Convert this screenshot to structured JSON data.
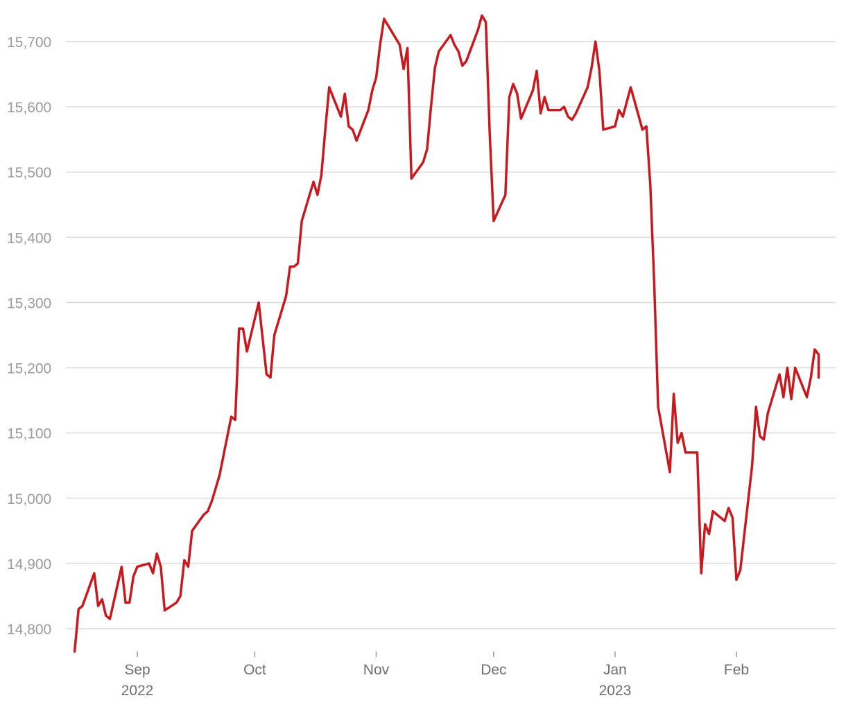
{
  "chart_data": {
    "type": "line",
    "title": "",
    "xlabel": "",
    "ylabel": "",
    "ylim": [
      14765,
      15740
    ],
    "grid": "horizontal",
    "legend": "none",
    "yticks": [
      {
        "value": 15700,
        "label": "15,700"
      },
      {
        "value": 15600,
        "label": "15,600"
      },
      {
        "value": 15500,
        "label": "15,500"
      },
      {
        "value": 15400,
        "label": "15,400"
      },
      {
        "value": 15300,
        "label": "15,300"
      },
      {
        "value": 15200,
        "label": "15,200"
      },
      {
        "value": 15100,
        "label": "15,100"
      },
      {
        "value": 15000,
        "label": "15,000"
      },
      {
        "value": 14900,
        "label": "14,900"
      },
      {
        "value": 14800,
        "label": "14,800"
      }
    ],
    "xticks": [
      {
        "date": "2022-09-01",
        "label": "Sep",
        "year": "2022"
      },
      {
        "date": "2022-10-01",
        "label": "Oct",
        "year": ""
      },
      {
        "date": "2022-11-01",
        "label": "Nov",
        "year": ""
      },
      {
        "date": "2022-12-01",
        "label": "Dec",
        "year": ""
      },
      {
        "date": "2023-01-01",
        "label": "Jan",
        "year": "2023"
      },
      {
        "date": "2023-02-01",
        "label": "Feb",
        "year": ""
      }
    ],
    "x_range": [
      "2022-08-12",
      "2023-02-28"
    ],
    "series": [
      {
        "color": "#c8191f",
        "points": [
          [
            "2022-08-16",
            14765
          ],
          [
            "2022-08-17",
            14830
          ],
          [
            "2022-08-18",
            14835
          ],
          [
            "2022-08-21",
            14885
          ],
          [
            "2022-08-22",
            14835
          ],
          [
            "2022-08-23",
            14845
          ],
          [
            "2022-08-24",
            14820
          ],
          [
            "2022-08-25",
            14815
          ],
          [
            "2022-08-28",
            14895
          ],
          [
            "2022-08-29",
            14840
          ],
          [
            "2022-08-30",
            14840
          ],
          [
            "2022-08-31",
            14880
          ],
          [
            "2022-09-01",
            14895
          ],
          [
            "2022-09-04",
            14900
          ],
          [
            "2022-09-05",
            14885
          ],
          [
            "2022-09-06",
            14915
          ],
          [
            "2022-09-07",
            14895
          ],
          [
            "2022-09-08",
            14828
          ],
          [
            "2022-09-11",
            14840
          ],
          [
            "2022-09-12",
            14850
          ],
          [
            "2022-09-13",
            14905
          ],
          [
            "2022-09-14",
            14895
          ],
          [
            "2022-09-15",
            14950
          ],
          [
            "2022-09-18",
            14975
          ],
          [
            "2022-09-19",
            14980
          ],
          [
            "2022-09-20",
            14995
          ],
          [
            "2022-09-22",
            15035
          ],
          [
            "2022-09-25",
            15125
          ],
          [
            "2022-09-26",
            15120
          ],
          [
            "2022-09-27",
            15260
          ],
          [
            "2022-09-28",
            15260
          ],
          [
            "2022-09-29",
            15225
          ],
          [
            "2022-10-02",
            15300
          ],
          [
            "2022-10-04",
            15190
          ],
          [
            "2022-10-05",
            15185
          ],
          [
            "2022-10-06",
            15250
          ],
          [
            "2022-10-09",
            15310
          ],
          [
            "2022-10-10",
            15355
          ],
          [
            "2022-10-11",
            15355
          ],
          [
            "2022-10-12",
            15360
          ],
          [
            "2022-10-13",
            15425
          ],
          [
            "2022-10-16",
            15485
          ],
          [
            "2022-10-17",
            15465
          ],
          [
            "2022-10-18",
            15495
          ],
          [
            "2022-10-19",
            15565
          ],
          [
            "2022-10-20",
            15630
          ],
          [
            "2022-10-23",
            15585
          ],
          [
            "2022-10-24",
            15620
          ],
          [
            "2022-10-25",
            15570
          ],
          [
            "2022-10-26",
            15565
          ],
          [
            "2022-10-27",
            15548
          ],
          [
            "2022-10-30",
            15595
          ],
          [
            "2022-10-31",
            15625
          ],
          [
            "2022-11-01",
            15645
          ],
          [
            "2022-11-02",
            15695
          ],
          [
            "2022-11-03",
            15735
          ],
          [
            "2022-11-07",
            15695
          ],
          [
            "2022-11-08",
            15658
          ],
          [
            "2022-11-09",
            15690
          ],
          [
            "2022-11-10",
            15490
          ],
          [
            "2022-11-13",
            15515
          ],
          [
            "2022-11-14",
            15535
          ],
          [
            "2022-11-15",
            15600
          ],
          [
            "2022-11-16",
            15660
          ],
          [
            "2022-11-17",
            15685
          ],
          [
            "2022-11-20",
            15710
          ],
          [
            "2022-11-21",
            15695
          ],
          [
            "2022-11-22",
            15685
          ],
          [
            "2022-11-23",
            15663
          ],
          [
            "2022-11-24",
            15670
          ],
          [
            "2022-11-27",
            15718
          ],
          [
            "2022-11-28",
            15740
          ],
          [
            "2022-11-29",
            15730
          ],
          [
            "2022-11-30",
            15560
          ],
          [
            "2022-12-01",
            15425
          ],
          [
            "2022-12-04",
            15465
          ],
          [
            "2022-12-05",
            15615
          ],
          [
            "2022-12-06",
            15635
          ],
          [
            "2022-12-07",
            15620
          ],
          [
            "2022-12-08",
            15582
          ],
          [
            "2022-12-11",
            15625
          ],
          [
            "2022-12-12",
            15655
          ],
          [
            "2022-12-13",
            15590
          ],
          [
            "2022-12-14",
            15615
          ],
          [
            "2022-12-15",
            15595
          ],
          [
            "2022-12-18",
            15595
          ],
          [
            "2022-12-19",
            15600
          ],
          [
            "2022-12-20",
            15585
          ],
          [
            "2022-12-21",
            15580
          ],
          [
            "2022-12-22",
            15590
          ],
          [
            "2022-12-25",
            15630
          ],
          [
            "2022-12-26",
            15660
          ],
          [
            "2022-12-27",
            15700
          ],
          [
            "2022-12-28",
            15655
          ],
          [
            "2022-12-29",
            15565
          ],
          [
            "2023-01-01",
            15570
          ],
          [
            "2023-01-02",
            15595
          ],
          [
            "2023-01-03",
            15585
          ],
          [
            "2023-01-05",
            15630
          ],
          [
            "2023-01-08",
            15565
          ],
          [
            "2023-01-09",
            15570
          ],
          [
            "2023-01-10",
            15480
          ],
          [
            "2023-01-11",
            15330
          ],
          [
            "2023-01-12",
            15140
          ],
          [
            "2023-01-15",
            15040
          ],
          [
            "2023-01-16",
            15160
          ],
          [
            "2023-01-17",
            15085
          ],
          [
            "2023-01-18",
            15100
          ],
          [
            "2023-01-19",
            15070
          ],
          [
            "2023-01-22",
            15070
          ],
          [
            "2023-01-23",
            14885
          ],
          [
            "2023-01-24",
            14960
          ],
          [
            "2023-01-25",
            14945
          ],
          [
            "2023-01-26",
            14980
          ],
          [
            "2023-01-29",
            14965
          ],
          [
            "2023-01-30",
            14985
          ],
          [
            "2023-01-31",
            14970
          ],
          [
            "2023-02-01",
            14875
          ],
          [
            "2023-02-02",
            14890
          ],
          [
            "2023-02-05",
            15050
          ],
          [
            "2023-02-06",
            15140
          ],
          [
            "2023-02-07",
            15095
          ],
          [
            "2023-02-08",
            15090
          ],
          [
            "2023-02-09",
            15130
          ],
          [
            "2023-02-12",
            15190
          ],
          [
            "2023-02-13",
            15155
          ],
          [
            "2023-02-14",
            15200
          ],
          [
            "2023-02-15",
            15152
          ],
          [
            "2023-02-16",
            15200
          ],
          [
            "2023-02-19",
            15155
          ],
          [
            "2023-02-20",
            15185
          ],
          [
            "2023-02-21",
            15228
          ],
          [
            "2023-02-22",
            15220
          ],
          [
            "2023-02-22",
            15185
          ]
        ]
      }
    ]
  }
}
